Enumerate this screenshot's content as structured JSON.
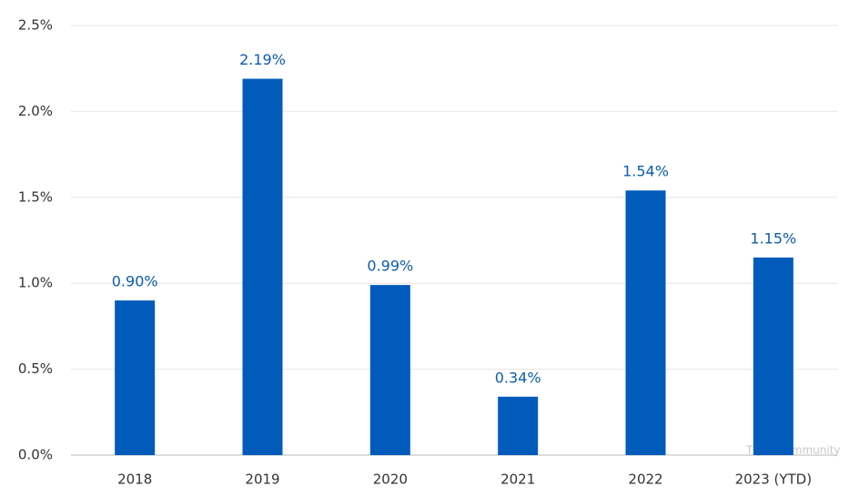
{
  "chart_data": {
    "type": "bar",
    "categories": [
      "2018",
      "2019",
      "2020",
      "2021",
      "2022",
      "2023 (YTD)"
    ],
    "values": [
      0.9,
      2.19,
      0.99,
      0.34,
      1.54,
      1.15
    ],
    "value_labels": [
      "0.90%",
      "2.19%",
      "0.99%",
      "0.34%",
      "1.54%",
      "1.15%"
    ],
    "color": "#005bbb",
    "ylim": [
      0,
      2.5
    ],
    "yticks": [
      {
        "value": 0,
        "label": "0.0%"
      },
      {
        "value": 0.5,
        "label": "0.5%"
      },
      {
        "value": 1.0,
        "label": "1.0%"
      },
      {
        "value": 1.5,
        "label": "1.5%"
      },
      {
        "value": 2.0,
        "label": "2.0%"
      },
      {
        "value": 2.5,
        "label": "2.5%"
      }
    ],
    "grid": true,
    "watermark": "Tiger Community"
  }
}
